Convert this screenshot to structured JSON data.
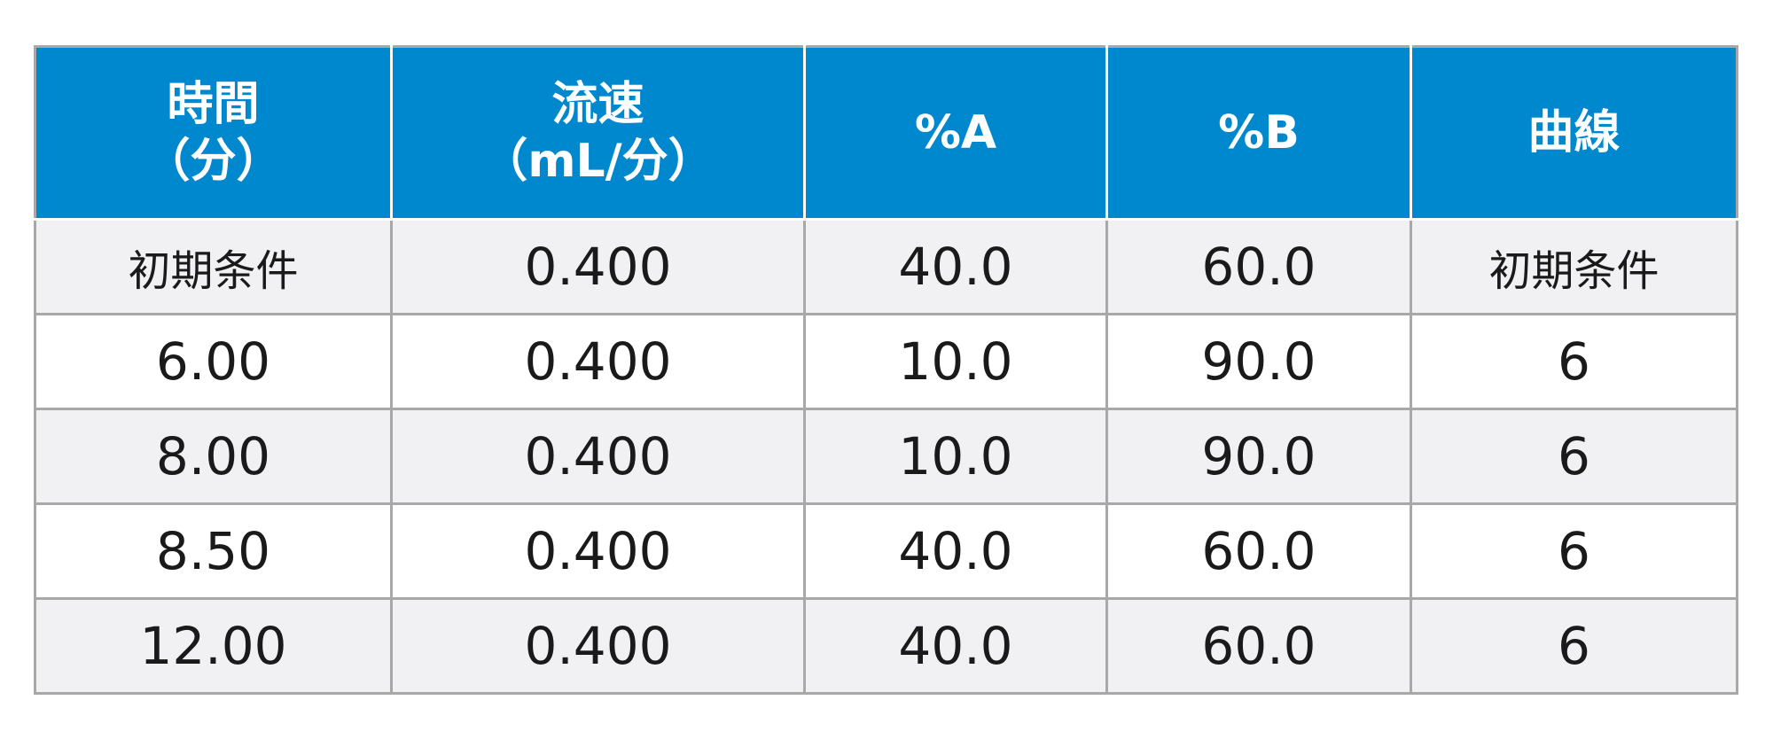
{
  "table": {
    "header": [
      [
        "時間",
        "（分）"
      ],
      [
        "流速",
        "（mL/分）"
      ],
      [
        "%A"
      ],
      [
        "%B"
      ],
      [
        "曲線"
      ]
    ],
    "rows": [
      [
        "初期条件",
        "0.400",
        "40.0",
        "60.0",
        "初期条件"
      ],
      [
        "6.00",
        "0.400",
        "10.0",
        "90.0",
        "6"
      ],
      [
        "8.00",
        "0.400",
        "10.0",
        "90.0",
        "6"
      ],
      [
        "8.50",
        "0.400",
        "40.0",
        "60.0",
        "6"
      ],
      [
        "12.00",
        "0.400",
        "40.0",
        "60.0",
        "6"
      ]
    ]
  }
}
